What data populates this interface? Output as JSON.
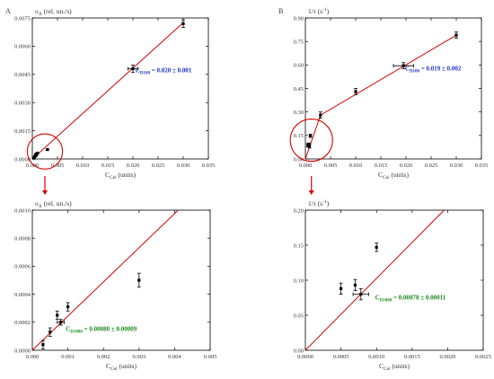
{
  "chart_data": [
    {
      "id": "A-top",
      "panel_letter": "A",
      "type": "scatter",
      "ylabel": "υₐ (rel. un./s)",
      "ylabel_main": "υ",
      "ylabel_sub": "A",
      "ylabel_rest": " (rel. un./s)",
      "xlabel_main": "C",
      "xlabel_sub": "Cel",
      "xlabel_rest": " (units)",
      "xlim": [
        0,
        0.035
      ],
      "ylim": [
        0,
        0.0075
      ],
      "xticks": [
        "0.000",
        "0.005",
        "0.010",
        "0.015",
        "0.020",
        "0.025",
        "0.030",
        "0.035"
      ],
      "xtick_values": [
        0,
        0.005,
        0.01,
        0.015,
        0.02,
        0.025,
        0.03,
        0.035
      ],
      "yticks": [
        "0.0000",
        "0.0015",
        "0.0030",
        "0.0045",
        "0.0060",
        "0.0075"
      ],
      "ytick_values": [
        0,
        0.0015,
        0.003,
        0.0045,
        0.006,
        0.0075
      ],
      "points": [
        {
          "x": 0.0003,
          "y": 4e-05,
          "yerr": 3e-05
        },
        {
          "x": 0.0005,
          "y": 0.00013,
          "yerr": 3e-05
        },
        {
          "x": 0.0007,
          "y": 0.00025,
          "yerr": 3e-05
        },
        {
          "x": 0.0008,
          "y": 0.0002,
          "yerr": 2e-05
        },
        {
          "x": 0.001,
          "y": 0.00031,
          "yerr": 3e-05
        },
        {
          "x": 0.003,
          "y": 0.0005,
          "yerr": 5e-05
        },
        {
          "x": 0.02,
          "y": 0.0048,
          "xerr": 0.001,
          "yerr": 0.0002
        },
        {
          "x": 0.03,
          "y": 0.0072,
          "yerr": 0.0002
        }
      ],
      "fit_line": [
        [
          0,
          0
        ],
        [
          0.03,
          0.00725
        ]
      ],
      "annotation": {
        "main": "C",
        "sub": "D100",
        "rest": " = 0.020 ± 0.001",
        "color": "#1f2fd0",
        "x": 0.0205,
        "y": 0.0047
      },
      "highlight_circle": {
        "cx": 0.0025,
        "cy": 0.0004,
        "r": 0.0035
      }
    },
    {
      "id": "B-top",
      "panel_letter": "B",
      "type": "scatter",
      "ylabel": "1/τ (s⁻¹)",
      "ylabel_main": "1/τ (s",
      "ylabel_sup": "-1",
      "ylabel_rest": ")",
      "xlabel_main": "C",
      "xlabel_sub": "Cel",
      "xlabel_rest": " (units)",
      "xlim": [
        0,
        0.035
      ],
      "ylim": [
        0,
        0.9
      ],
      "xticks": [
        "0.000",
        "0.005",
        "0.010",
        "0.015",
        "0.020",
        "0.025",
        "0.030",
        "0.035"
      ],
      "xtick_values": [
        0,
        0.005,
        0.01,
        0.015,
        0.02,
        0.025,
        0.03,
        0.035
      ],
      "yticks": [
        "0.00",
        "0.15",
        "0.30",
        "0.45",
        "0.60",
        "0.75",
        "0.90"
      ],
      "ytick_values": [
        0,
        0.15,
        0.3,
        0.45,
        0.6,
        0.75,
        0.9
      ],
      "points": [
        {
          "x": 0.0005,
          "y": 0.088,
          "yerr": 0.01
        },
        {
          "x": 0.0007,
          "y": 0.092,
          "yerr": 0.01
        },
        {
          "x": 0.0008,
          "y": 0.08,
          "yerr": 0.01
        },
        {
          "x": 0.001,
          "y": 0.148,
          "yerr": 0.01
        },
        {
          "x": 0.003,
          "y": 0.28,
          "yerr": 0.02
        },
        {
          "x": 0.01,
          "y": 0.43,
          "yerr": 0.02
        },
        {
          "x": 0.0195,
          "y": 0.595,
          "xerr": 0.002,
          "yerr": 0.02
        },
        {
          "x": 0.03,
          "y": 0.79,
          "yerr": 0.02
        }
      ],
      "fit_line": [
        [
          0,
          0
        ],
        [
          0.003,
          0.28
        ],
        [
          0.03,
          0.79
        ]
      ],
      "annotation": {
        "main": "C",
        "sub": "D100",
        "rest": " = 0.019 ± 0.002",
        "color": "#1f2fd0",
        "x": 0.0198,
        "y": 0.575
      },
      "highlight_circle": {
        "cx": 0.0012,
        "cy": 0.12,
        "r": 0.0042
      }
    },
    {
      "id": "A-bottom",
      "type": "scatter",
      "ylabel": "υₐ (rel. un./s)",
      "ylabel_main": "υ",
      "ylabel_sub": "A",
      "ylabel_rest": " (rel. un./s)",
      "xlabel_main": "C",
      "xlabel_sub": "Cel",
      "xlabel_rest": " (units)",
      "xlim": [
        0,
        0.005
      ],
      "ylim": [
        0,
        0.001
      ],
      "xticks": [
        "0.000",
        "0.001",
        "0.002",
        "0.003",
        "0.004",
        "0.005"
      ],
      "xtick_values": [
        0,
        0.001,
        0.002,
        0.003,
        0.004,
        0.005
      ],
      "yticks": [
        "0.0000",
        "0.0002",
        "0.0004",
        "0.0006",
        "0.0008",
        "0.0010"
      ],
      "ytick_values": [
        0,
        0.0002,
        0.0004,
        0.0006,
        0.0008,
        0.001
      ],
      "points": [
        {
          "x": 0.0003,
          "y": 4e-05,
          "yerr": 3e-05
        },
        {
          "x": 0.0005,
          "y": 0.00013,
          "yerr": 3e-05
        },
        {
          "x": 0.0007,
          "y": 0.00025,
          "yerr": 3e-05
        },
        {
          "x": 0.0008,
          "y": 0.0002,
          "xerr": 0.0001,
          "yerr": 2e-05
        },
        {
          "x": 0.001,
          "y": 0.00031,
          "yerr": 3e-05
        },
        {
          "x": 0.003,
          "y": 0.0005,
          "yerr": 5e-05
        }
      ],
      "fit_line": [
        [
          0,
          0
        ],
        [
          0.0041,
          0.001
        ]
      ],
      "annotation": {
        "main": "C",
        "sub": "D1000",
        "rest": " = 0.00080 ± 0.00009",
        "color": "#1a8a1a",
        "x": 0.00094,
        "y": 0.00015
      },
      "highlight_circle": null
    },
    {
      "id": "B-bottom",
      "type": "scatter",
      "ylabel": "1/τ (s⁻¹)",
      "ylabel_main": "1/τ (s",
      "ylabel_sup": "-1",
      "ylabel_rest": ")",
      "xlabel_main": "C",
      "xlabel_sub": "Cel",
      "xlabel_rest": " (units)",
      "xlim": [
        0,
        0.0025
      ],
      "ylim": [
        0,
        0.2
      ],
      "xticks": [
        "0.0000",
        "0.0005",
        "0.0010",
        "0.0015",
        "0.0020",
        "0.0025"
      ],
      "xtick_values": [
        0,
        0.0005,
        0.001,
        0.0015,
        0.002,
        0.0025
      ],
      "yticks": [
        "0.00",
        "0.05",
        "0.10",
        "0.15",
        "0.20"
      ],
      "ytick_values": [
        0,
        0.05,
        0.1,
        0.15,
        0.2
      ],
      "points": [
        {
          "x": 0.0005,
          "y": 0.088,
          "yerr": 0.008
        },
        {
          "x": 0.0007,
          "y": 0.093,
          "yerr": 0.008
        },
        {
          "x": 0.00078,
          "y": 0.08,
          "xerr": 0.00011,
          "yerr": 0.008
        },
        {
          "x": 0.001,
          "y": 0.147,
          "yerr": 0.006
        }
      ],
      "fit_line": [
        [
          0,
          0
        ],
        [
          0.00195,
          0.2
        ]
      ],
      "annotation": {
        "main": "C",
        "sub": "D1000",
        "rest": " = 0.00078 ± 0.00011",
        "color": "#1a8a1a",
        "x": 0.00098,
        "y": 0.075
      },
      "highlight_circle": null
    }
  ],
  "zoom_arrows": [
    {
      "from": "A-top",
      "to": "A-bottom"
    },
    {
      "from": "B-top",
      "to": "B-bottom"
    }
  ],
  "colors": {
    "fit_line": "#d40000",
    "highlight": "#d40000",
    "marker": "#000000",
    "axis": "#000000",
    "text": "#333333"
  }
}
